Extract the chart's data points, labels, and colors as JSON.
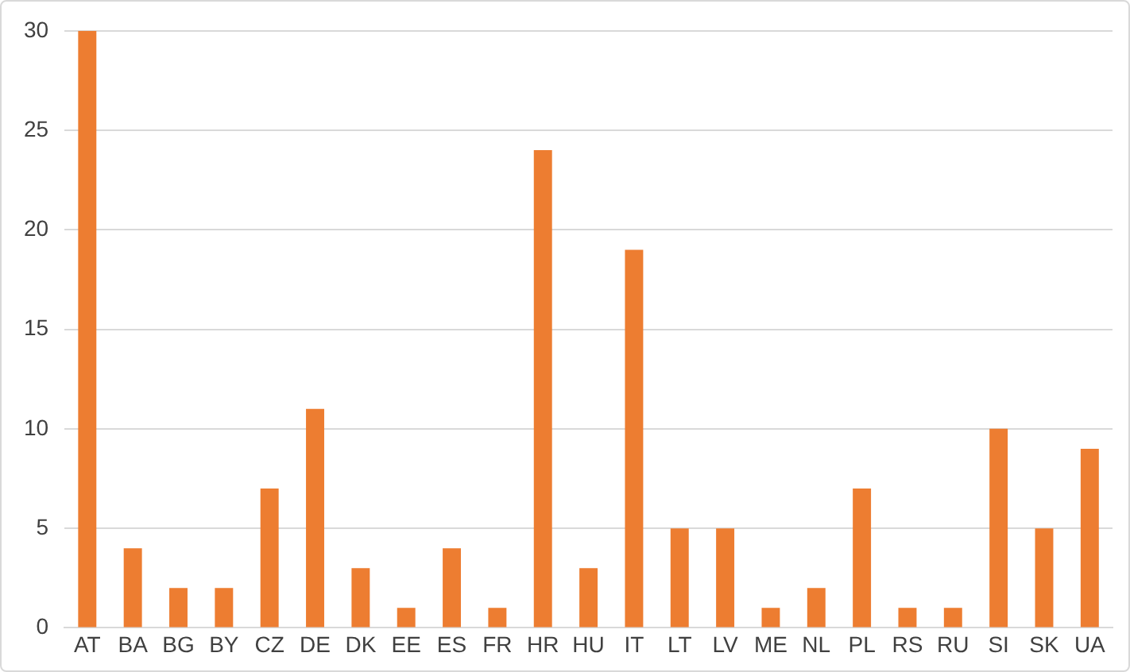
{
  "chart_data": {
    "type": "bar",
    "categories": [
      "AT",
      "BA",
      "BG",
      "BY",
      "CZ",
      "DE",
      "DK",
      "EE",
      "ES",
      "FR",
      "HR",
      "HU",
      "IT",
      "LT",
      "LV",
      "ME",
      "NL",
      "PL",
      "RS",
      "RU",
      "SI",
      "SK",
      "UA"
    ],
    "values": [
      30,
      4,
      2,
      2,
      7,
      11,
      3,
      1,
      4,
      1,
      24,
      3,
      19,
      5,
      5,
      1,
      2,
      7,
      1,
      1,
      10,
      5,
      9
    ],
    "color": "#ed7d31",
    "ylim": [
      0,
      30
    ],
    "yticks": [
      0,
      5,
      10,
      15,
      20,
      25,
      30
    ],
    "grid": "y"
  }
}
